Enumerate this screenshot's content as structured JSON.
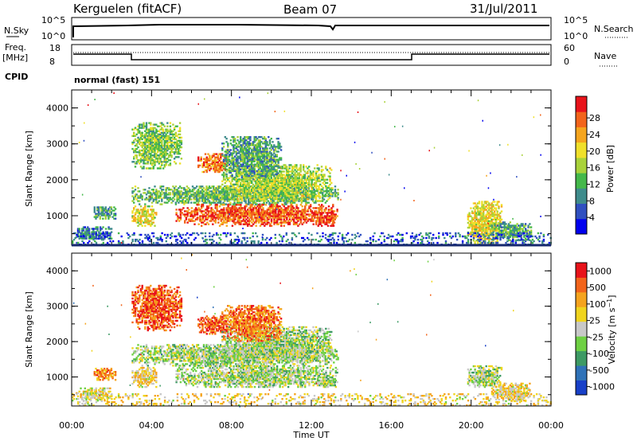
{
  "header": {
    "station": "Kerguelen (fitACF)",
    "beam": "Beam 07",
    "date": "31/Jul/2011"
  },
  "top_panels": {
    "nsky_label": "N.Sky",
    "nsky_ticks": [
      "10^5",
      "10^0"
    ],
    "nsearch_label": "N.Search",
    "nsearch_ticks": [
      "10^5",
      "10^0"
    ],
    "freq_label_line1": "Freq.",
    "freq_label_line2": "[MHz]",
    "freq_ticks": [
      "18",
      "8"
    ],
    "nave_label": "Nave",
    "nave_ticks": [
      "60",
      "0"
    ],
    "cpid_label": "CPID",
    "cpid_text": "normal (fast) 151"
  },
  "chart_data": [
    {
      "type": "heatmap",
      "name": "power-panel",
      "ylabel": "Slant Range [km]",
      "xlabel": "Time UT",
      "yticks": [
        "1000",
        "2000",
        "3000",
        "4000"
      ],
      "ylim": [
        180,
        4500
      ],
      "xticks": [
        "00:00",
        "04:00",
        "08:00",
        "12:00",
        "16:00",
        "20:00",
        "00:00"
      ],
      "xlim_hours": [
        0,
        24
      ],
      "colorbar": {
        "label": "Power [dB]",
        "ticks": [
          "4",
          "8",
          "12",
          "16",
          "20",
          "24",
          "28"
        ],
        "colors": [
          "#0000ee",
          "#3050c0",
          "#3f8c8c",
          "#44b84a",
          "#a9d23a",
          "#f0e02a",
          "#f5a51e",
          "#f2641b",
          "#e8131a"
        ]
      },
      "echo_regions": [
        {
          "t0": 0.2,
          "t1": 2.0,
          "r0": 300,
          "r1": 700,
          "level": 0.25
        },
        {
          "t0": 1.1,
          "t1": 2.2,
          "r0": 900,
          "r1": 1250,
          "level": 0.35
        },
        {
          "t0": 3.0,
          "t1": 4.2,
          "r0": 700,
          "r1": 1250,
          "level": 0.6
        },
        {
          "t0": 3.0,
          "t1": 5.5,
          "r0": 2300,
          "r1": 3600,
          "level": 0.45
        },
        {
          "t0": 3.0,
          "t1": 13.3,
          "r0": 1300,
          "r1": 1800,
          "level": 0.4
        },
        {
          "t0": 5.2,
          "t1": 13.3,
          "r0": 700,
          "r1": 1300,
          "level": 0.85
        },
        {
          "t0": 6.3,
          "t1": 7.8,
          "r0": 2200,
          "r1": 2700,
          "level": 0.8
        },
        {
          "t0": 7.5,
          "t1": 13.0,
          "r0": 1400,
          "r1": 2400,
          "level": 0.5
        },
        {
          "t0": 7.5,
          "t1": 10.5,
          "r0": 2000,
          "r1": 3200,
          "level": 0.35
        },
        {
          "t0": 12.3,
          "t1": 13.2,
          "r0": 700,
          "r1": 1000,
          "level": 0.9
        },
        {
          "t0": 19.8,
          "t1": 21.5,
          "r0": 200,
          "r1": 1400,
          "level": 0.6
        },
        {
          "t0": 21.0,
          "t1": 23.0,
          "r0": 300,
          "r1": 800,
          "level": 0.35
        },
        {
          "t0": 0.0,
          "t1": 24.0,
          "r0": 180,
          "r1": 500,
          "level": 0.2
        }
      ]
    },
    {
      "type": "heatmap",
      "name": "velocity-panel",
      "ylabel": "Slant Range [km]",
      "xlabel": "Time UT",
      "yticks": [
        "1000",
        "2000",
        "3000",
        "4000"
      ],
      "ylim": [
        180,
        4500
      ],
      "xticks": [
        "00:00",
        "04:00",
        "08:00",
        "12:00",
        "16:00",
        "20:00",
        "00:00"
      ],
      "xlim_hours": [
        0,
        24
      ],
      "colorbar": {
        "label": "Velocity [m s^-1]",
        "ticks": [
          "1000",
          "500",
          "100",
          "25",
          "-25",
          "-100",
          "-500",
          "-1000"
        ],
        "colors": [
          "#1840c8",
          "#2f72b8",
          "#3d9a64",
          "#6ed043",
          "#c8c8c8",
          "#f0d41e",
          "#f5a31e",
          "#f2641b",
          "#e8131a"
        ]
      },
      "echo_regions": [
        {
          "t0": 0.2,
          "t1": 2.0,
          "r0": 300,
          "r1": 700,
          "level": 0.55
        },
        {
          "t0": 1.1,
          "t1": 2.2,
          "r0": 900,
          "r1": 1250,
          "level": 0.75
        },
        {
          "t0": 3.0,
          "t1": 4.2,
          "r0": 700,
          "r1": 1250,
          "level": 0.6
        },
        {
          "t0": 3.0,
          "t1": 5.5,
          "r0": 2300,
          "r1": 3600,
          "level": 0.85
        },
        {
          "t0": 3.0,
          "t1": 13.3,
          "r0": 1300,
          "r1": 1900,
          "level": 0.45
        },
        {
          "t0": 5.2,
          "t1": 13.3,
          "r0": 700,
          "r1": 1300,
          "level": 0.45
        },
        {
          "t0": 6.3,
          "t1": 7.8,
          "r0": 2200,
          "r1": 2700,
          "level": 0.85
        },
        {
          "t0": 7.5,
          "t1": 13.0,
          "r0": 1400,
          "r1": 2400,
          "level": 0.45
        },
        {
          "t0": 7.5,
          "t1": 10.5,
          "r0": 2000,
          "r1": 3000,
          "level": 0.8
        },
        {
          "t0": 12.3,
          "t1": 13.2,
          "r0": 700,
          "r1": 1000,
          "level": 0.45
        },
        {
          "t0": 19.8,
          "t1": 21.5,
          "r0": 700,
          "r1": 1300,
          "level": 0.45
        },
        {
          "t0": 21.0,
          "t1": 23.0,
          "r0": 300,
          "r1": 800,
          "level": 0.6
        },
        {
          "t0": 0.0,
          "t1": 24.0,
          "r0": 180,
          "r1": 500,
          "level": 0.6
        }
      ]
    }
  ]
}
